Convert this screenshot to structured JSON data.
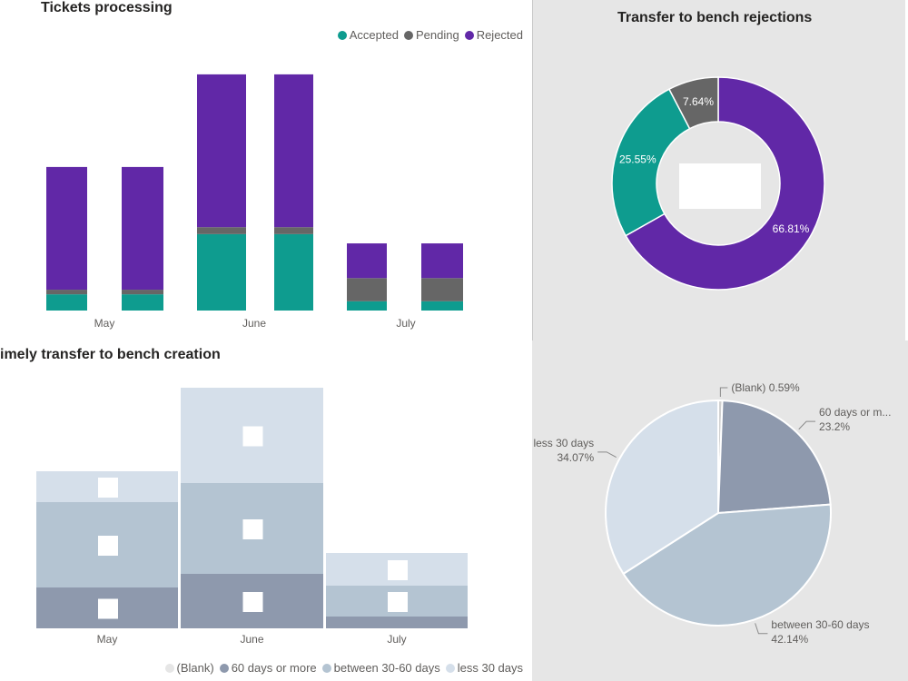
{
  "chart_data": [
    {
      "id": "tickets",
      "type": "bar",
      "stacked": true,
      "title": "Tickets processing",
      "categories": [
        "May",
        "June",
        "July"
      ],
      "legend_position": "top-right",
      "grid": false,
      "colors": {
        "Accepted": "#0e9c8f",
        "Pending": "#666666",
        "Rejected": "#6128a7"
      },
      "series": [
        {
          "name": "Accepted",
          "values": [
            7,
            33,
            4
          ]
        },
        {
          "name": "Pending",
          "values": [
            2,
            3,
            10
          ]
        },
        {
          "name": "Rejected",
          "values": [
            53,
            66,
            15
          ]
        }
      ],
      "ylim": [
        0,
        100
      ]
    },
    {
      "id": "timely",
      "type": "bar",
      "stacked": true,
      "title": "imely transfer to bench creation",
      "categories": [
        "May",
        "June",
        "July"
      ],
      "legend_position": "bottom-right",
      "grid": false,
      "colors": {
        "(Blank)": "#e6e6e6",
        "60 days or more": "#8e99ad",
        "between 30-60 days": "#b4c4d2",
        "less 30 days": "#d5dfea"
      },
      "series": [
        {
          "name": "(Blank)",
          "values": [
            0,
            0,
            0
          ]
        },
        {
          "name": "60 days or more",
          "values": [
            45,
            60,
            13
          ]
        },
        {
          "name": "between 30-60 days",
          "values": [
            94,
            100,
            34
          ]
        },
        {
          "name": "less 30 days",
          "values": [
            34,
            105,
            36
          ]
        }
      ],
      "ylim": [
        0,
        265
      ]
    },
    {
      "id": "bench-rejections",
      "type": "pie",
      "donut": true,
      "title": "Transfer to bench rejections",
      "slices": [
        {
          "label": "66.81%",
          "value": 66.81,
          "color": "#6128a7"
        },
        {
          "label": "25.55%",
          "value": 25.55,
          "color": "#0e9c8f"
        },
        {
          "label": "7.64%",
          "value": 7.64,
          "color": "#666666"
        }
      ]
    },
    {
      "id": "creation-pie",
      "type": "pie",
      "donut": false,
      "slices": [
        {
          "name": "(Blank)",
          "label": "(Blank) 0.59%",
          "value": 0.59,
          "color": "#d0d0d0"
        },
        {
          "name": "60 days or m...",
          "pct": "23.2%",
          "value": 23.2,
          "color": "#8e99ad"
        },
        {
          "name": "between 30-60 days",
          "pct": "42.14%",
          "value": 42.14,
          "color": "#b4c4d2"
        },
        {
          "name": "less 30 days",
          "pct": "34.07%",
          "value": 34.07,
          "color": "#d5dfea"
        }
      ]
    }
  ]
}
